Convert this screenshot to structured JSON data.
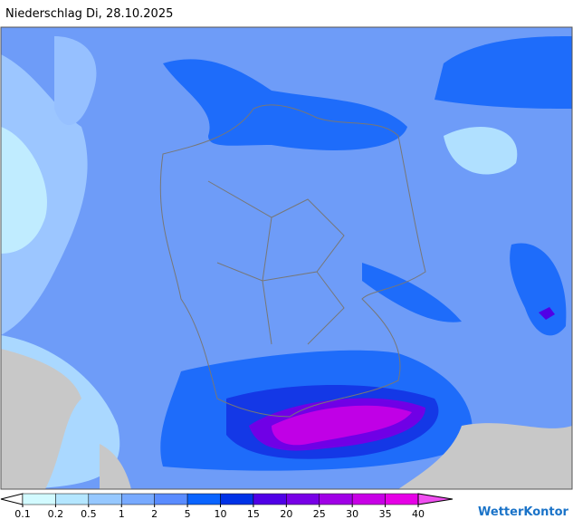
{
  "header": {
    "title": "Niederschlag Di, 28.10.2025"
  },
  "legend": {
    "ticks": [
      0.1,
      0.2,
      0.5,
      1,
      2,
      5,
      10,
      15,
      20,
      25,
      30,
      35,
      40
    ],
    "below_color": "#ffffff",
    "colors": [
      "#d2faff",
      "#b4e6ff",
      "#96c8ff",
      "#78aaff",
      "#5a8cff",
      "#0a64ff",
      "#0032e6",
      "#5000e6",
      "#7800e6",
      "#a000e6",
      "#c800e6",
      "#e600e6"
    ],
    "above_color": "#f050f0"
  },
  "brand": {
    "name": "WetterKontor"
  }
}
